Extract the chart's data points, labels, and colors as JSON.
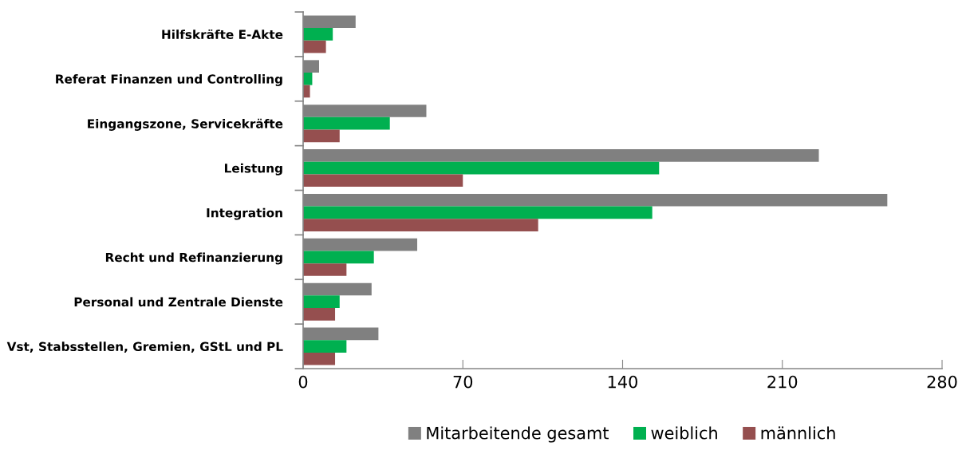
{
  "chart_data": {
    "type": "bar",
    "orientation": "horizontal",
    "categories": [
      "Hilfskräfte E-Akte",
      "Referat Finanzen und Controlling",
      "Eingangszone, Servicekräfte",
      "Leistung",
      "Integration",
      "Recht und Refinanzierung",
      "Personal und Zentrale Dienste",
      "Vst, Stabsstellen, Gremien, GStL und PL"
    ],
    "series": [
      {
        "name": "Mitarbeitende gesamt",
        "color": "#808080",
        "values": [
          23,
          7,
          54,
          226,
          256,
          50,
          30,
          33
        ]
      },
      {
        "name": "weiblich",
        "color": "#00b050",
        "values": [
          13,
          4,
          38,
          156,
          153,
          31,
          16,
          19
        ]
      },
      {
        "name": "männlich",
        "color": "#954f4f",
        "values": [
          10,
          3,
          16,
          70,
          103,
          19,
          14,
          14
        ]
      }
    ],
    "xlim": [
      0,
      280
    ],
    "xticks": [
      0,
      70,
      140,
      210,
      280
    ],
    "grid": false,
    "legend": "bottom"
  }
}
